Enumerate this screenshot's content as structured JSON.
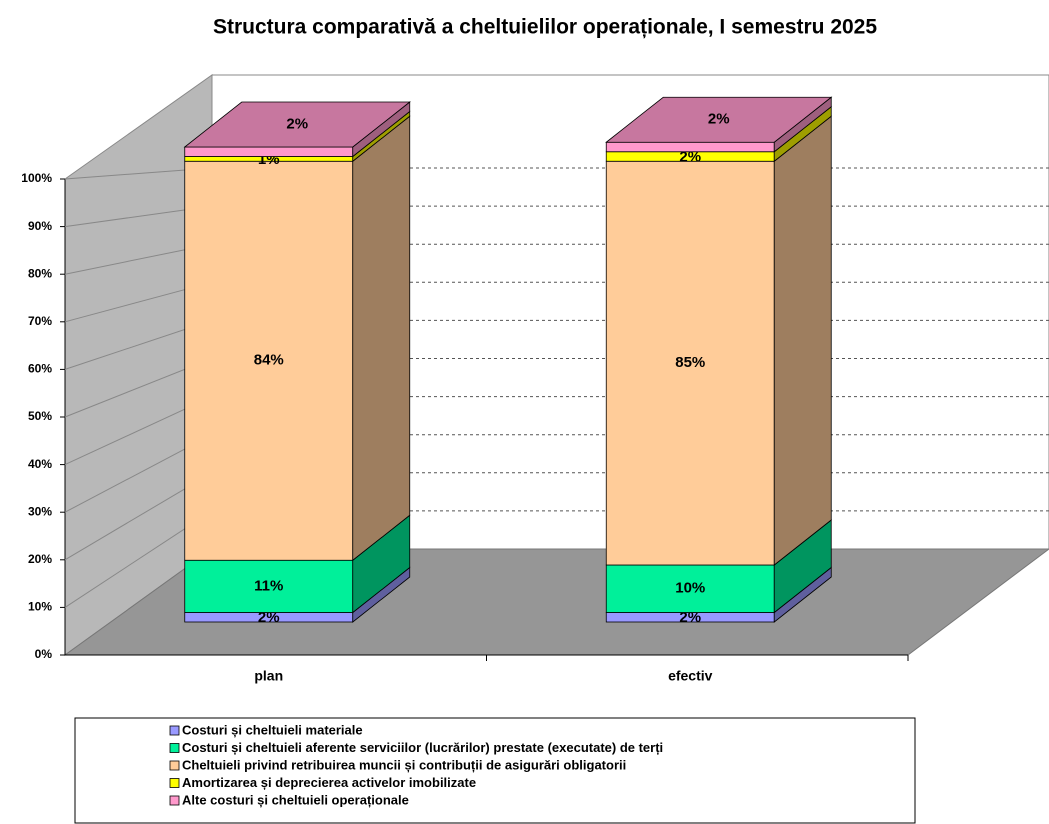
{
  "chart_data": {
    "type": "bar3d_stacked",
    "title": "Structura comparativă a cheltuielilor operaționale, I semestru 2025",
    "categories": [
      "plan",
      "efectiv"
    ],
    "series": [
      {
        "name": "Costuri și cheltuieli materiale",
        "color": "#9999ff",
        "values": [
          2,
          2
        ],
        "value_labels": [
          "2%",
          "2%"
        ]
      },
      {
        "name": "Costuri și cheltuieli aferente serviciilor (lucrărilor) prestate (executate) de terți",
        "color": "#00f09a",
        "values": [
          11,
          10
        ],
        "value_labels": [
          "11%",
          "10%"
        ]
      },
      {
        "name": "Cheltuieli privind retribuirea muncii și contribuții de asigurări obligatorii",
        "color": "#ffcc99",
        "values": [
          84,
          85
        ],
        "value_labels": [
          "84%",
          "85%"
        ]
      },
      {
        "name": "Amortizarea și deprecierea activelor imobilizate",
        "color": "#ffff00",
        "values": [
          1,
          2
        ],
        "value_labels": [
          "1%",
          "2%"
        ]
      },
      {
        "name": "Alte costuri și cheltuieli operaționale",
        "color": "#ff99cc",
        "values": [
          2,
          2
        ],
        "value_labels": [
          "2%",
          "2%"
        ]
      }
    ],
    "ylim": [
      0,
      100
    ],
    "yticks": [
      {
        "value": 0,
        "label": "0%"
      },
      {
        "value": 10,
        "label": "10%"
      },
      {
        "value": 20,
        "label": "20%"
      },
      {
        "value": 30,
        "label": "30%"
      },
      {
        "value": 40,
        "label": "40%"
      },
      {
        "value": 50,
        "label": "50%"
      },
      {
        "value": 60,
        "label": "60%"
      },
      {
        "value": 70,
        "label": "70%"
      },
      {
        "value": 80,
        "label": "80%"
      },
      {
        "value": 90,
        "label": "90%"
      },
      {
        "value": 100,
        "label": "100%"
      }
    ],
    "grid": true,
    "legend": "bottom"
  }
}
